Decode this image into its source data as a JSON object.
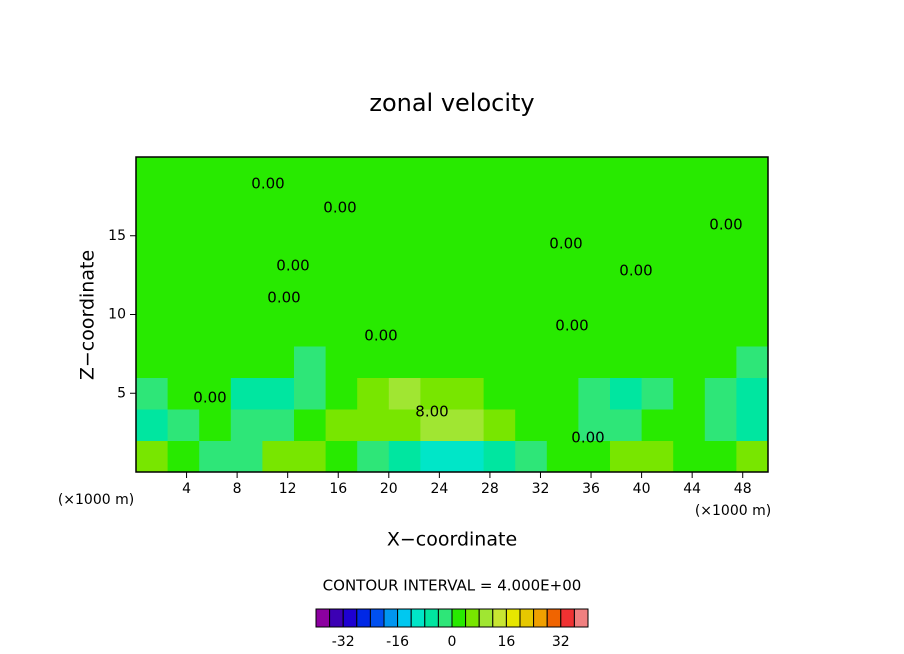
{
  "chart_data": {
    "type": "contour",
    "title": "zonal velocity",
    "xlabel": "X−coordinate",
    "ylabel": "Z−coordinate",
    "x_unit_label": "(×1000 m)",
    "footer": "CONTOUR INTERVAL = 4.000E+00",
    "xlim": [
      0,
      50
    ],
    "ylim": [
      0,
      20
    ],
    "xticks": [
      4,
      8,
      12,
      16,
      20,
      24,
      28,
      32,
      36,
      40,
      44,
      48
    ],
    "yticks": [
      5,
      10,
      15
    ],
    "x": [
      1.25,
      3.75,
      6.25,
      8.75,
      11.25,
      13.75,
      16.25,
      18.75,
      21.25,
      23.75,
      26.25,
      28.75,
      31.25,
      33.75,
      36.25,
      38.75,
      41.25,
      43.75,
      46.25,
      48.75
    ],
    "y": [
      1,
      3,
      5,
      7,
      9,
      11,
      13,
      15,
      17,
      19
    ],
    "z": [
      [
        5,
        3,
        -3,
        -2,
        5,
        6,
        2,
        -3,
        -6,
        -9,
        -12,
        -8,
        -4,
        2,
        3,
        6,
        4,
        2,
        1,
        6
      ],
      [
        -5,
        -2,
        1,
        -3,
        -2,
        2,
        5,
        6,
        7,
        8,
        9,
        6,
        3,
        0,
        -2,
        -1,
        1,
        0,
        -2,
        -5
      ],
      [
        -2,
        1,
        0,
        -5,
        -6,
        -4,
        2,
        6,
        8,
        7,
        5,
        3,
        1,
        0,
        -3,
        -5,
        -3,
        0,
        -1,
        -5
      ],
      [
        1,
        2,
        3,
        1,
        0,
        -1,
        1,
        3,
        2,
        1,
        1,
        1,
        2,
        1,
        0,
        0,
        1,
        1,
        0,
        -1
      ],
      [
        2,
        2,
        1,
        3,
        2,
        1,
        0,
        1,
        2,
        1,
        2,
        0,
        1,
        2,
        1,
        2,
        1,
        2,
        1,
        2
      ],
      [
        1,
        2,
        2,
        1,
        2,
        1,
        2,
        1,
        0,
        1,
        2,
        1,
        2,
        1,
        2,
        1,
        2,
        1,
        2,
        1
      ],
      [
        2,
        1,
        2,
        2,
        1,
        2,
        2,
        1,
        2,
        1,
        0,
        2,
        1,
        2,
        1,
        2,
        2,
        1,
        2,
        1
      ],
      [
        1,
        2,
        1,
        2,
        2,
        1,
        2,
        2,
        1,
        2,
        1,
        2,
        2,
        1,
        2,
        1,
        2,
        1,
        2,
        2
      ],
      [
        2,
        1,
        2,
        1,
        2,
        2,
        1,
        2,
        2,
        1,
        2,
        1,
        2,
        2,
        1,
        2,
        1,
        2,
        1,
        2
      ],
      [
        1,
        2,
        1,
        2,
        1,
        2,
        2,
        1,
        2,
        2,
        1,
        2,
        1,
        2,
        2,
        1,
        2,
        1,
        2,
        1
      ]
    ],
    "contour_labels": [
      "0.00",
      "0.00",
      "0.00",
      "0.00",
      "0.00",
      "0.00",
      "0.00",
      "0.00",
      "0.00",
      "0.00",
      "0.00",
      "8.00"
    ],
    "levels": [
      -40,
      -36,
      -32,
      -28,
      -24,
      -20,
      -16,
      -12,
      -8,
      -4,
      0,
      4,
      8,
      12,
      16,
      20,
      24,
      28,
      32,
      36,
      40
    ],
    "colors": [
      "#8c00a0",
      "#3c00b4",
      "#1e00d2",
      "#0028e6",
      "#0050f0",
      "#0096f0",
      "#00c8f0",
      "#00e6c8",
      "#00e6a0",
      "#2ee678",
      "#28ea00",
      "#78e600",
      "#a0e632",
      "#c8e632",
      "#e6e600",
      "#e6c800",
      "#f0a000",
      "#f06400",
      "#f03232",
      "#f08080"
    ],
    "cbar_ticks": [
      -32,
      -16,
      0,
      16,
      32
    ]
  }
}
